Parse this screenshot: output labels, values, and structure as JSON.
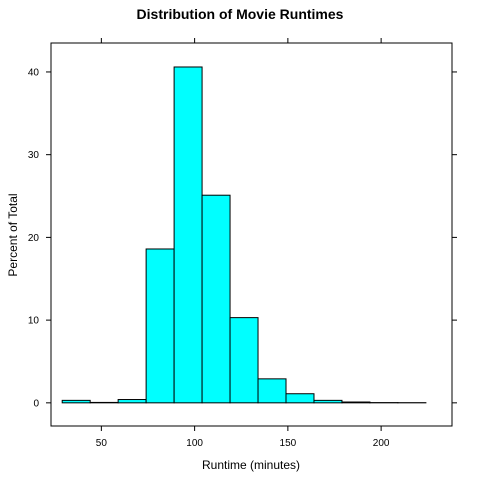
{
  "chart_data": {
    "type": "bar",
    "title": "Distribution of Movie Runtimes",
    "xlabel": "Runtime (minutes)",
    "ylabel": "Percent of Total",
    "xlim": [
      23,
      238
    ],
    "ylim": [
      -2.8,
      43.5
    ],
    "x_ticks": [
      50,
      100,
      150,
      200
    ],
    "x_tick_labels": [
      "50",
      "100",
      "150",
      "200"
    ],
    "y_ticks": [
      0,
      10,
      20,
      30,
      40
    ],
    "y_tick_labels": [
      "0",
      "10",
      "20",
      "30",
      "40"
    ],
    "bins": [
      {
        "start": 29,
        "end": 44,
        "value": 0.3
      },
      {
        "start": 44,
        "end": 59,
        "value": 0.05
      },
      {
        "start": 59,
        "end": 74,
        "value": 0.4
      },
      {
        "start": 74,
        "end": 89,
        "value": 18.6
      },
      {
        "start": 89,
        "end": 104,
        "value": 40.6
      },
      {
        "start": 104,
        "end": 119,
        "value": 25.1
      },
      {
        "start": 119,
        "end": 134,
        "value": 10.3
      },
      {
        "start": 134,
        "end": 149,
        "value": 2.9
      },
      {
        "start": 149,
        "end": 164,
        "value": 1.1
      },
      {
        "start": 164,
        "end": 179,
        "value": 0.3
      },
      {
        "start": 179,
        "end": 194,
        "value": 0.1
      },
      {
        "start": 194,
        "end": 209,
        "value": 0.03
      },
      {
        "start": 209,
        "end": 224,
        "value": 0.02
      }
    ],
    "bar_color": "#00FFFF",
    "bar_outline": "#000000",
    "grid": false,
    "legend": false
  }
}
